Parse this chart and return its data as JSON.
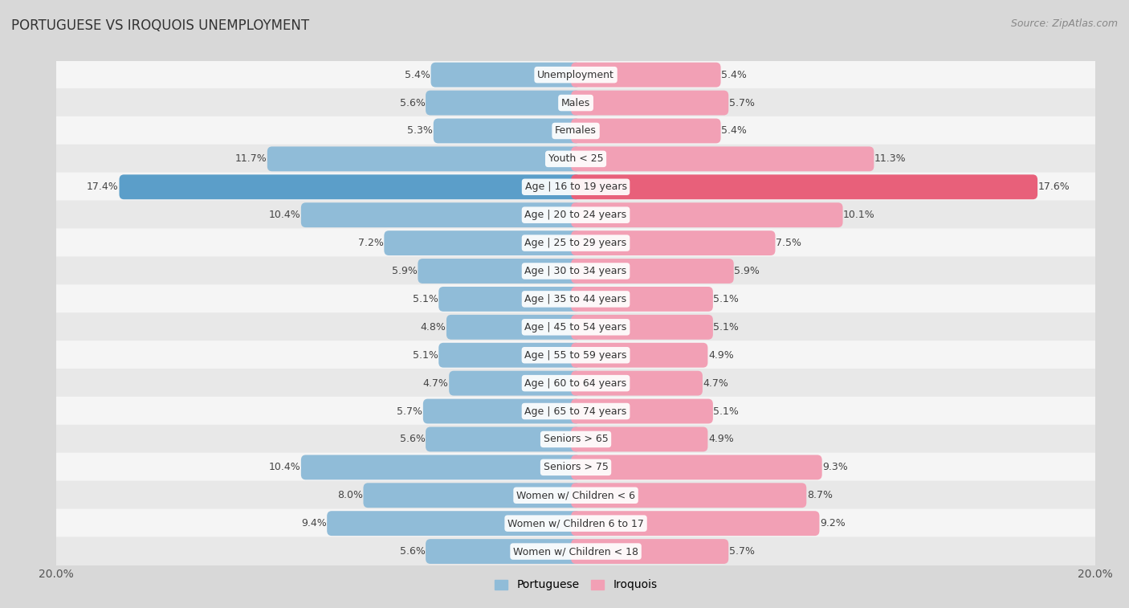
{
  "title": "PORTUGUESE VS IROQUOIS UNEMPLOYMENT",
  "source": "Source: ZipAtlas.com",
  "categories": [
    "Unemployment",
    "Males",
    "Females",
    "Youth < 25",
    "Age | 16 to 19 years",
    "Age | 20 to 24 years",
    "Age | 25 to 29 years",
    "Age | 30 to 34 years",
    "Age | 35 to 44 years",
    "Age | 45 to 54 years",
    "Age | 55 to 59 years",
    "Age | 60 to 64 years",
    "Age | 65 to 74 years",
    "Seniors > 65",
    "Seniors > 75",
    "Women w/ Children < 6",
    "Women w/ Children 6 to 17",
    "Women w/ Children < 18"
  ],
  "portuguese": [
    5.4,
    5.6,
    5.3,
    11.7,
    17.4,
    10.4,
    7.2,
    5.9,
    5.1,
    4.8,
    5.1,
    4.7,
    5.7,
    5.6,
    10.4,
    8.0,
    9.4,
    5.6
  ],
  "iroquois": [
    5.4,
    5.7,
    5.4,
    11.3,
    17.6,
    10.1,
    7.5,
    5.9,
    5.1,
    5.1,
    4.9,
    4.7,
    5.1,
    4.9,
    9.3,
    8.7,
    9.2,
    5.7
  ],
  "portuguese_color": "#90bcd8",
  "iroquois_color": "#f2a0b5",
  "portuguese_highlight_color": "#5b9ec9",
  "iroquois_highlight_color": "#e8607a",
  "row_bg_even": "#f5f5f5",
  "row_bg_odd": "#e8e8e8",
  "outer_bg": "#d8d8d8",
  "max_val": 20.0,
  "bar_height": 0.52,
  "label_fontsize": 9.0,
  "title_fontsize": 12,
  "legend_fontsize": 10,
  "value_fontsize": 9.0
}
